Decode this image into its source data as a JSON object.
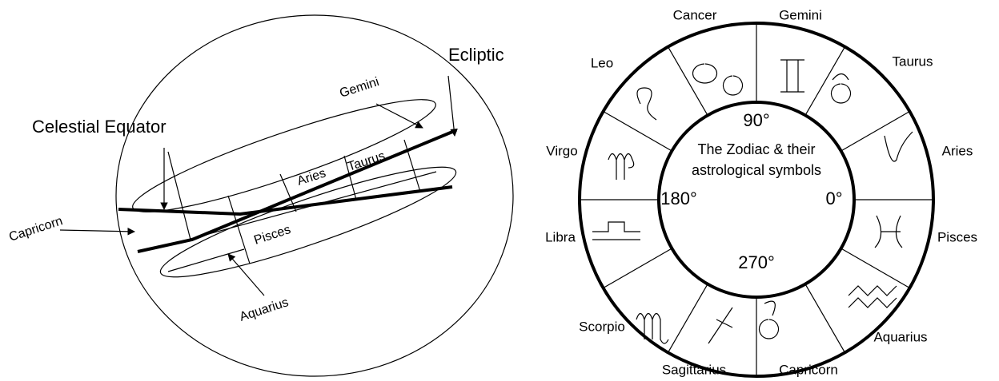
{
  "left": {
    "celestial_equator": "Celestial Equator",
    "ecliptic": "Ecliptic",
    "gemini": "Gemini",
    "aries": "Aries",
    "taurus": "Taurus",
    "pisces": "Pisces",
    "aquarius": "Aquarius",
    "capricorn": "Capricorn"
  },
  "right": {
    "center_line1": "The Zodiac & their",
    "center_line2": "astrological symbols",
    "deg90": "90°",
    "deg180": "180°",
    "deg0": "0°",
    "deg270": "270°",
    "signs": {
      "cancer": "Cancer",
      "gemini": "Gemini",
      "taurus": "Taurus",
      "leo": "Leo",
      "virgo": "Virgo",
      "aries": "Aries",
      "libra": "Libra",
      "pisces": "Pisces",
      "scorpio": "Scorpio",
      "aquarius": "Aquarius",
      "sagittarius": "Sagittarius",
      "capricorn": "Capricorn"
    }
  }
}
